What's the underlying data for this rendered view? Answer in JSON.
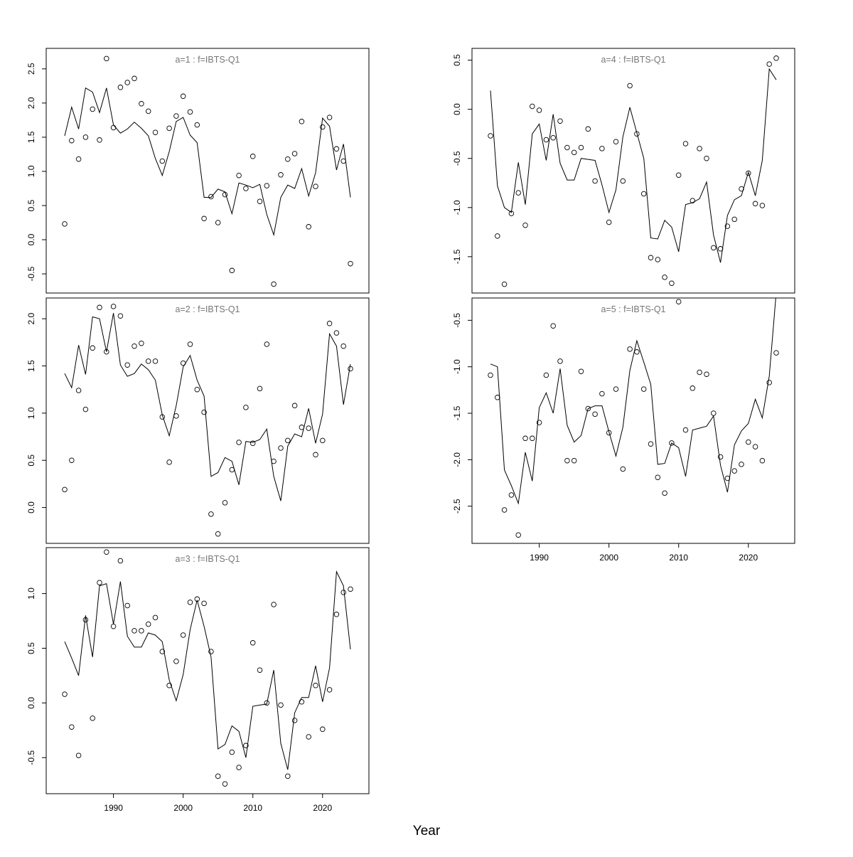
{
  "xlabel": "Year",
  "chart_data": [
    {
      "type": "line",
      "title": "a=1  :  f=IBTS-Q1",
      "x_range": [
        1983,
        2024
      ],
      "ylim": [
        -0.78,
        2.8
      ],
      "yticks": [
        -0.5,
        0.0,
        0.5,
        1.0,
        1.5,
        2.0,
        2.5
      ],
      "xticks": [],
      "series": [
        {
          "kind": "line",
          "x_start": 1983,
          "values": [
            1.52,
            1.94,
            1.62,
            2.22,
            2.16,
            1.86,
            2.22,
            1.68,
            1.56,
            1.62,
            1.72,
            1.63,
            1.52,
            1.19,
            0.94,
            1.29,
            1.73,
            1.79,
            1.53,
            1.42,
            0.62,
            0.62,
            0.74,
            0.7,
            0.38,
            0.83,
            0.8,
            0.76,
            0.81,
            0.37,
            0.07,
            0.62,
            0.8,
            0.75,
            1.04,
            0.64,
            0.98,
            1.78,
            1.66,
            1.02,
            1.4,
            0.62
          ]
        },
        {
          "kind": "points",
          "x_start": 1983,
          "values": [
            0.23,
            1.45,
            1.18,
            1.5,
            1.91,
            1.46,
            2.65,
            1.64,
            2.23,
            2.3,
            2.36,
            1.99,
            1.88,
            1.57,
            1.15,
            1.63,
            1.81,
            2.1,
            1.87,
            1.68,
            0.31,
            0.63,
            0.25,
            0.66,
            -0.45,
            0.94,
            0.75,
            1.22,
            0.56,
            0.79,
            -0.65,
            0.95,
            1.18,
            1.26,
            1.73,
            0.19,
            0.78,
            1.65,
            1.79,
            1.33,
            1.15,
            -0.35
          ]
        }
      ]
    },
    {
      "type": "line",
      "title": "a=2  :  f=IBTS-Q1",
      "x_range": [
        1983,
        2024
      ],
      "ylim": [
        -0.38,
        2.22
      ],
      "yticks": [
        0.0,
        0.5,
        1.0,
        1.5,
        2.0
      ],
      "xticks": [],
      "series": [
        {
          "kind": "line",
          "x_start": 1983,
          "values": [
            1.42,
            1.27,
            1.72,
            1.41,
            2.02,
            2.0,
            1.65,
            2.06,
            1.51,
            1.39,
            1.42,
            1.52,
            1.46,
            1.35,
            0.98,
            0.76,
            1.08,
            1.49,
            1.61,
            1.35,
            1.18,
            0.33,
            0.37,
            0.53,
            0.49,
            0.24,
            0.7,
            0.69,
            0.72,
            0.83,
            0.33,
            0.07,
            0.65,
            0.78,
            0.75,
            1.05,
            0.68,
            0.99,
            1.84,
            1.71,
            1.09,
            1.52
          ]
        },
        {
          "kind": "points",
          "x_start": 1983,
          "values": [
            0.19,
            0.5,
            1.24,
            1.04,
            1.69,
            2.12,
            1.65,
            2.13,
            2.03,
            1.51,
            1.71,
            1.74,
            1.55,
            1.55,
            0.96,
            0.48,
            0.97,
            1.53,
            1.73,
            1.25,
            1.01,
            -0.07,
            -0.28,
            0.05,
            0.4,
            0.69,
            1.06,
            0.68,
            1.26,
            1.73,
            0.49,
            0.63,
            0.71,
            1.08,
            0.85,
            0.84,
            0.56,
            0.71,
            1.95,
            1.85,
            1.71,
            1.47
          ]
        }
      ]
    },
    {
      "type": "line",
      "title": "a=3  :  f=IBTS-Q1",
      "x_range": [
        1983,
        2024
      ],
      "ylim": [
        -0.83,
        1.42
      ],
      "yticks": [
        -0.5,
        0.0,
        0.5,
        1.0
      ],
      "xticks": [
        1990,
        2000,
        2010,
        2020
      ],
      "series": [
        {
          "kind": "line",
          "x_start": 1983,
          "values": [
            0.56,
            0.41,
            0.25,
            0.8,
            0.42,
            1.07,
            1.09,
            0.72,
            1.11,
            0.61,
            0.51,
            0.51,
            0.64,
            0.62,
            0.56,
            0.21,
            0.02,
            0.26,
            0.67,
            0.94,
            0.7,
            0.42,
            -0.42,
            -0.38,
            -0.21,
            -0.26,
            -0.5,
            -0.03,
            -0.02,
            -0.01,
            0.3,
            -0.37,
            -0.61,
            -0.09,
            0.05,
            0.05,
            0.34,
            0.01,
            0.32,
            1.2,
            1.07,
            0.49
          ]
        },
        {
          "kind": "points",
          "x_start": 1983,
          "values": [
            0.08,
            -0.22,
            -0.48,
            0.76,
            -0.14,
            1.1,
            1.38,
            0.7,
            1.3,
            0.89,
            0.66,
            0.66,
            0.72,
            0.78,
            0.47,
            0.16,
            0.38,
            0.62,
            0.92,
            0.95,
            0.91,
            0.47,
            -0.67,
            -0.74,
            -0.45,
            -0.59,
            -0.39,
            0.55,
            0.3,
            0.0,
            0.9,
            -0.02,
            -0.67,
            -0.16,
            0.01,
            -0.31,
            0.16,
            -0.24,
            0.12,
            0.81,
            1.01,
            1.04
          ]
        }
      ]
    },
    {
      "type": "line",
      "title": "a=4  :  f=IBTS-Q1",
      "x_range": [
        1983,
        2024
      ],
      "ylim": [
        -1.87,
        0.62
      ],
      "yticks": [
        -1.5,
        -1.0,
        -0.5,
        0.0,
        0.5
      ],
      "xticks": [],
      "series": [
        {
          "kind": "line",
          "x_start": 1983,
          "values": [
            0.19,
            -0.78,
            -1.0,
            -1.05,
            -0.54,
            -0.97,
            -0.25,
            -0.15,
            -0.52,
            -0.05,
            -0.55,
            -0.72,
            -0.72,
            -0.5,
            -0.51,
            -0.52,
            -0.77,
            -1.05,
            -0.82,
            -0.28,
            0.02,
            -0.24,
            -0.5,
            -1.31,
            -1.32,
            -1.13,
            -1.2,
            -1.45,
            -0.97,
            -0.95,
            -0.91,
            -0.74,
            -1.28,
            -1.56,
            -1.08,
            -0.92,
            -0.88,
            -0.64,
            -0.88,
            -0.52,
            0.41,
            0.3
          ]
        },
        {
          "kind": "points",
          "x_start": 1983,
          "values": [
            -0.27,
            -1.29,
            -1.78,
            -1.06,
            -0.85,
            -1.18,
            0.03,
            -0.01,
            -0.31,
            -0.29,
            -0.12,
            -0.39,
            -0.44,
            -0.39,
            -0.2,
            -0.73,
            -0.4,
            -1.15,
            -0.33,
            -0.73,
            0.24,
            -0.25,
            -0.86,
            -1.51,
            -1.53,
            -1.71,
            -1.77,
            -0.67,
            -0.35,
            -0.93,
            -0.4,
            -0.5,
            -1.41,
            -1.42,
            -1.19,
            -1.12,
            -0.81,
            -0.65,
            -0.96,
            -0.98,
            0.46,
            0.52
          ]
        }
      ]
    },
    {
      "type": "line",
      "title": "a=5  :  f=IBTS-Q1",
      "x_range": [
        1983,
        2024
      ],
      "ylim": [
        -2.9,
        -0.26
      ],
      "yticks": [
        -2.5,
        -2.0,
        -1.5,
        -1.0,
        -0.5
      ],
      "xticks": [
        1990,
        2000,
        2010,
        2020
      ],
      "series": [
        {
          "kind": "line",
          "x_start": 1983,
          "values": [
            -0.97,
            -1.0,
            -2.11,
            -2.28,
            -2.47,
            -1.92,
            -2.23,
            -1.44,
            -1.28,
            -1.5,
            -1.02,
            -1.63,
            -1.81,
            -1.74,
            -1.45,
            -1.42,
            -1.42,
            -1.7,
            -1.96,
            -1.65,
            -1.04,
            -0.72,
            -0.95,
            -1.19,
            -2.05,
            -2.04,
            -1.82,
            -1.87,
            -2.18,
            -1.68,
            -1.66,
            -1.64,
            -1.53,
            -2.06,
            -2.35,
            -1.84,
            -1.69,
            -1.61,
            -1.35,
            -1.55,
            -1.1,
            -0.2
          ]
        },
        {
          "kind": "points",
          "x_start": 1983,
          "values": [
            -1.09,
            -1.33,
            -2.54,
            -2.38,
            -2.81,
            -1.77,
            -1.77,
            -1.6,
            -1.09,
            -0.56,
            -0.94,
            -2.01,
            -2.01,
            -1.05,
            -1.45,
            -1.51,
            -1.29,
            -1.71,
            -1.24,
            -2.1,
            -0.81,
            -0.84,
            -1.24,
            -1.83,
            -2.19,
            -2.36,
            -1.82,
            -0.3,
            -1.68,
            -1.23,
            -1.06,
            -1.08,
            -1.5,
            -1.97,
            -2.2,
            -2.12,
            -2.05,
            -1.81,
            -1.86,
            -2.01,
            -1.17,
            -0.85
          ]
        }
      ]
    }
  ]
}
